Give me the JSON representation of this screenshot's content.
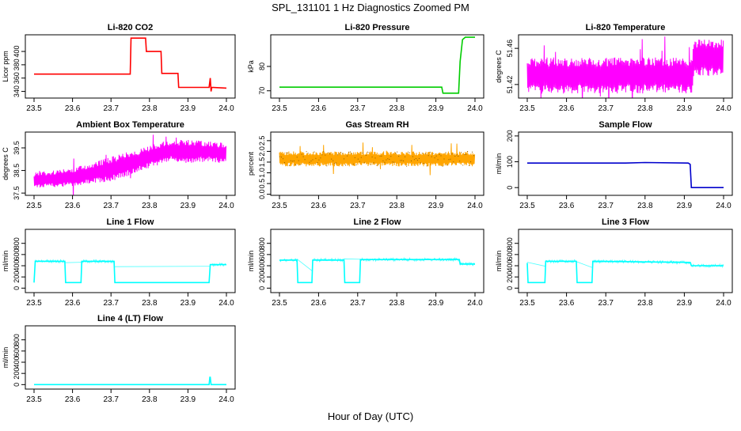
{
  "page": {
    "title": "SPL_131101  1 Hz Diagnostics Zoomed PM",
    "xlabel": "Hour of Day (UTC)"
  },
  "chart_data": [
    {
      "type": "line",
      "title": "Li-820 CO2",
      "ylabel": "Licor ppm",
      "color": "#ff0000",
      "xlim": [
        23.5,
        24.0
      ],
      "ylim": [
        330,
        425
      ],
      "xticks": [
        23.5,
        23.6,
        23.7,
        23.8,
        23.9,
        24.0
      ],
      "xtick_labels": [
        "23.5",
        "23.6",
        "23.7",
        "23.8",
        "23.9",
        "24.0"
      ],
      "yticks": [
        340,
        360,
        380,
        400
      ],
      "ytick_labels": [
        "340",
        "360",
        "380",
        "400"
      ],
      "x": [
        23.5,
        23.75,
        23.752,
        23.79,
        23.792,
        23.83,
        23.832,
        23.874,
        23.876,
        23.955,
        23.958,
        23.96,
        23.962,
        24.0
      ],
      "y": [
        366,
        366,
        420,
        420,
        400,
        400,
        367,
        367,
        346,
        346,
        360,
        340,
        346,
        345
      ]
    },
    {
      "type": "line",
      "title": "Li-820 Pressure",
      "ylabel": "kPa",
      "color": "#00cc00",
      "xlim": [
        23.5,
        24.0
      ],
      "ylim": [
        67,
        93
      ],
      "xticks": [
        23.5,
        23.6,
        23.7,
        23.8,
        23.9,
        24.0
      ],
      "xtick_labels": [
        "23.5",
        "23.6",
        "23.7",
        "23.8",
        "23.9",
        "24.0"
      ],
      "yticks": [
        70,
        80
      ],
      "ytick_labels": [
        "70",
        "80"
      ],
      "x": [
        23.5,
        23.915,
        23.918,
        23.958,
        23.962,
        23.968,
        23.975,
        24.0
      ],
      "y": [
        71.5,
        71.5,
        69,
        69,
        82,
        91,
        92,
        92
      ]
    },
    {
      "type": "band",
      "title": "Li-820 Temperature",
      "ylabel": "degrees C",
      "color": "#ff00ff",
      "xlim": [
        23.5,
        24.0
      ],
      "ylim": [
        51.405,
        51.475
      ],
      "xticks": [
        23.5,
        23.6,
        23.7,
        23.8,
        23.9,
        24.0
      ],
      "xtick_labels": [
        "23.5",
        "23.6",
        "23.7",
        "23.8",
        "23.9",
        "24.0"
      ],
      "yticks": [
        51.42,
        51.46
      ],
      "ytick_labels": [
        "51.42",
        "51.46"
      ],
      "x": [
        23.5,
        23.92,
        23.925,
        24.0
      ],
      "low": [
        51.41,
        51.41,
        51.43,
        51.43
      ],
      "high": [
        51.45,
        51.45,
        51.47,
        51.47
      ]
    },
    {
      "type": "band",
      "title": "Ambient Box Temperature",
      "ylabel": "degrees C",
      "color": "#ff00ff",
      "xlim": [
        23.5,
        24.0
      ],
      "ylim": [
        37.4,
        40.2
      ],
      "xticks": [
        23.5,
        23.6,
        23.7,
        23.8,
        23.9,
        24.0
      ],
      "xtick_labels": [
        "23.5",
        "23.6",
        "23.7",
        "23.8",
        "23.9",
        "24.0"
      ],
      "yticks": [
        37.5,
        38.5,
        39.5
      ],
      "ytick_labels": [
        "37.5",
        "38.5",
        "39.5"
      ],
      "x": [
        23.5,
        23.6,
        23.7,
        23.8,
        23.85,
        23.9,
        23.95,
        24.0
      ],
      "low": [
        37.7,
        37.8,
        38.0,
        38.6,
        38.9,
        38.8,
        38.9,
        38.8
      ],
      "high": [
        38.4,
        38.6,
        39.1,
        39.6,
        39.85,
        39.85,
        39.8,
        39.7
      ]
    },
    {
      "type": "band",
      "title": "Gas Stream RH",
      "ylabel": "percent",
      "color": "#ffa500",
      "xlim": [
        23.5,
        24.0
      ],
      "ylim": [
        -0.05,
        2.9
      ],
      "xticks": [
        23.5,
        23.6,
        23.7,
        23.8,
        23.9,
        24.0
      ],
      "xtick_labels": [
        "23.5",
        "23.6",
        "23.7",
        "23.8",
        "23.9",
        "24.0"
      ],
      "yticks": [
        0.0,
        0.5,
        1.0,
        1.5,
        2.0,
        2.5
      ],
      "ytick_labels": [
        "0.0",
        "0.5",
        "1.0",
        "1.5",
        "2.0",
        "2.5"
      ],
      "x": [
        23.5,
        24.0
      ],
      "low": [
        1.3,
        1.3
      ],
      "high": [
        2.0,
        2.0
      ]
    },
    {
      "type": "line",
      "title": "Sample Flow",
      "ylabel": "ml/min",
      "color": "#0000cc",
      "xlim": [
        23.5,
        24.0
      ],
      "ylim": [
        -30,
        215
      ],
      "xticks": [
        23.5,
        23.6,
        23.7,
        23.8,
        23.9,
        24.0
      ],
      "xtick_labels": [
        "23.5",
        "23.6",
        "23.7",
        "23.8",
        "23.9",
        "24.0"
      ],
      "yticks": [
        0,
        100,
        200
      ],
      "ytick_labels": [
        "0",
        "100",
        "200"
      ],
      "x": [
        23.5,
        23.75,
        23.8,
        23.91,
        23.915,
        23.918,
        24.0
      ],
      "y": [
        95,
        95,
        97,
        95,
        90,
        0,
        0
      ]
    },
    {
      "type": "line",
      "title": "Line 1 Flow",
      "ylabel": "ml/min",
      "color": "#00ffff",
      "xlim": [
        23.5,
        24.0
      ],
      "ylim": [
        -80,
        1050
      ],
      "xticks": [
        23.5,
        23.6,
        23.7,
        23.8,
        23.9,
        24.0
      ],
      "xtick_labels": [
        "23.5",
        "23.6",
        "23.7",
        "23.8",
        "23.9",
        "24.0"
      ],
      "yticks": [
        0,
        200,
        400,
        600,
        800
      ],
      "ytick_labels": [
        "0",
        "200",
        "400",
        "600",
        "800"
      ],
      "x": [
        23.5,
        23.503,
        23.58,
        23.582,
        23.622,
        23.624,
        23.708,
        23.71,
        23.955,
        23.958,
        24.0
      ],
      "y": [
        100,
        480,
        480,
        100,
        100,
        480,
        480,
        100,
        100,
        420,
        420
      ]
    },
    {
      "type": "line",
      "title": "Line 2 Flow",
      "ylabel": "ml/min",
      "color": "#00ffff",
      "xlim": [
        23.5,
        24.0
      ],
      "ylim": [
        -80,
        1050
      ],
      "xticks": [
        23.5,
        23.6,
        23.7,
        23.8,
        23.9,
        24.0
      ],
      "xtick_labels": [
        "23.5",
        "23.6",
        "23.7",
        "23.8",
        "23.9",
        "24.0"
      ],
      "yticks": [
        0,
        200,
        400,
        600,
        800
      ],
      "ytick_labels": [
        "0",
        "200",
        "400",
        "600",
        "800"
      ],
      "x": [
        23.5,
        23.545,
        23.547,
        23.583,
        23.585,
        23.665,
        23.667,
        23.705,
        23.707,
        23.96,
        23.962,
        24.0
      ],
      "y": [
        500,
        500,
        100,
        100,
        500,
        500,
        100,
        100,
        510,
        510,
        430,
        430
      ]
    },
    {
      "type": "line",
      "title": "Line 3 Flow",
      "ylabel": "ml/min",
      "color": "#00ffff",
      "xlim": [
        23.5,
        24.0
      ],
      "ylim": [
        -80,
        1050
      ],
      "xticks": [
        23.5,
        23.6,
        23.7,
        23.8,
        23.9,
        24.0
      ],
      "xtick_labels": [
        "23.5",
        "23.6",
        "23.7",
        "23.8",
        "23.9",
        "24.0"
      ],
      "yticks": [
        0,
        200,
        400,
        600,
        800
      ],
      "ytick_labels": [
        "0",
        "200",
        "400",
        "600",
        "800"
      ],
      "x": [
        23.5,
        23.502,
        23.545,
        23.547,
        23.625,
        23.627,
        23.665,
        23.667,
        23.915,
        23.918,
        24.0
      ],
      "y": [
        450,
        100,
        100,
        480,
        480,
        100,
        100,
        480,
        460,
        400,
        400
      ]
    },
    {
      "type": "line",
      "title": "Line 4 (LT) Flow",
      "ylabel": "ml/min",
      "color": "#00ffff",
      "xlim": [
        23.5,
        24.0
      ],
      "ylim": [
        -80,
        1050
      ],
      "xticks": [
        23.5,
        23.6,
        23.7,
        23.8,
        23.9,
        24.0
      ],
      "xtick_labels": [
        "23.5",
        "23.6",
        "23.7",
        "23.8",
        "23.9",
        "24.0"
      ],
      "yticks": [
        0,
        200,
        400,
        600,
        800
      ],
      "ytick_labels": [
        "0",
        "200",
        "400",
        "600",
        "800"
      ],
      "x": [
        23.5,
        23.955,
        23.957,
        23.958,
        23.96,
        24.0
      ],
      "y": [
        0,
        0,
        130,
        130,
        0,
        0
      ]
    }
  ]
}
